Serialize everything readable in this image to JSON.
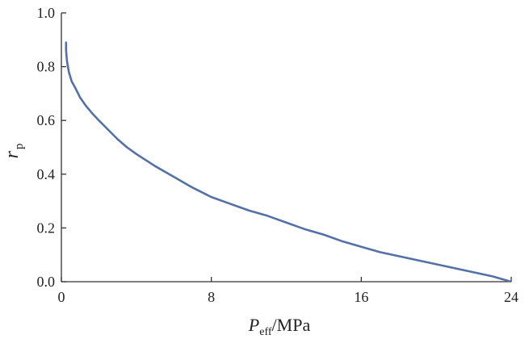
{
  "chart_data": {
    "type": "line",
    "title": "",
    "xlabel": {
      "main": "P",
      "sub": "eff",
      "unit": "/MPa"
    },
    "ylabel": {
      "main": "r",
      "sub": "p"
    },
    "xlim": [
      0,
      24
    ],
    "ylim": [
      0.0,
      1.0
    ],
    "x_ticks": [
      0,
      8,
      16,
      24
    ],
    "x_tick_labels": [
      "0",
      "8",
      "16",
      "24"
    ],
    "y_ticks": [
      0.0,
      0.2,
      0.4,
      0.6,
      0.8,
      1.0
    ],
    "y_tick_labels": [
      "0.0",
      "0.2",
      "0.4",
      "0.6",
      "0.8",
      "1.0"
    ],
    "grid": false,
    "series": [
      {
        "color": "#5470a8",
        "x": [
          0.25,
          0.25,
          0.3,
          0.4,
          0.55,
          0.75,
          1.0,
          1.3,
          1.6,
          2.0,
          2.5,
          3.0,
          3.5,
          4.0,
          5.0,
          6.0,
          7.0,
          8.0,
          9.0,
          10.0,
          11.0,
          12.0,
          13.0,
          14.0,
          15.0,
          16.0,
          17.0,
          18.0,
          19.0,
          20.0,
          21.0,
          22.0,
          23.0,
          23.9
        ],
        "y": [
          0.89,
          0.86,
          0.82,
          0.78,
          0.745,
          0.72,
          0.685,
          0.655,
          0.63,
          0.6,
          0.565,
          0.53,
          0.5,
          0.475,
          0.43,
          0.39,
          0.35,
          0.315,
          0.29,
          0.265,
          0.245,
          0.22,
          0.195,
          0.175,
          0.15,
          0.13,
          0.11,
          0.095,
          0.08,
          0.065,
          0.05,
          0.035,
          0.02,
          0.002
        ]
      }
    ]
  }
}
